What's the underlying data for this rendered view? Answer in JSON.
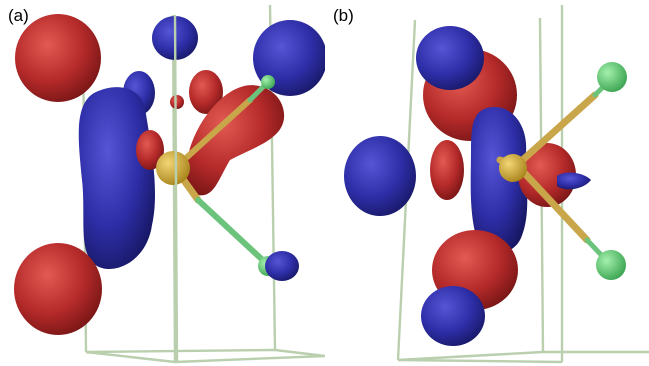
{
  "panels": [
    {
      "label": "(a)"
    },
    {
      "label": "(b)"
    }
  ],
  "colors": {
    "background": "#ffffff",
    "red_lobe": "#b52a2a",
    "blue_lobe": "#2e2ea8",
    "frame_lines": "#b9cfae",
    "central_atom": "#d6b13a",
    "bond": "#c9a64a",
    "ligand_atom": "#5fcf72"
  }
}
